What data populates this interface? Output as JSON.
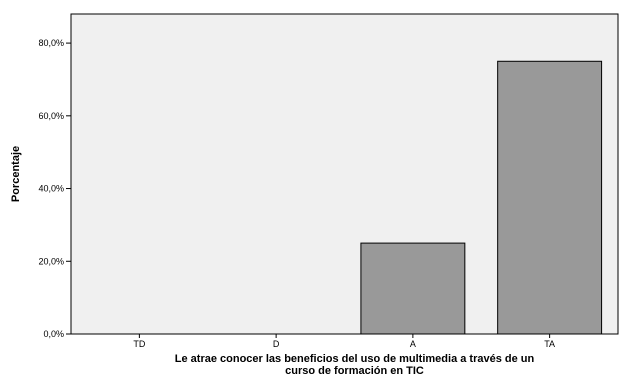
{
  "chart_data": {
    "type": "bar",
    "categories": [
      "TD",
      "D",
      "A",
      "TA"
    ],
    "values": [
      0.0,
      0.0,
      25.0,
      75.0
    ],
    "title": "",
    "xlabel_lines": [
      "Le atrae conocer las beneficios del uso de multimedia a través de un",
      "curso  de formación en TIC"
    ],
    "ylabel": "Porcentaje",
    "ylim": [
      0,
      88
    ],
    "yticks": [
      0,
      20,
      40,
      60,
      80
    ],
    "ytick_labels": [
      "0,0%",
      "20,0%",
      "40,0%",
      "60,0%",
      "80,0%"
    ],
    "grid": false,
    "legend": "none",
    "colors": {
      "plot_background": "#f0f0f0",
      "bar_fill": "#999999",
      "bar_stroke": "#000000",
      "axis": "#000000"
    }
  }
}
